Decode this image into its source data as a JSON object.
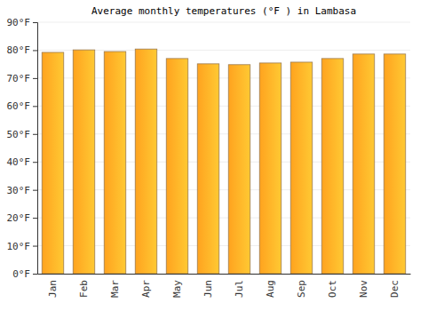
{
  "chart_data": {
    "type": "bar",
    "title": "Average monthly temperatures (°F ) in Lambasa",
    "categories": [
      "Jan",
      "Feb",
      "Mar",
      "Apr",
      "May",
      "Jun",
      "Jul",
      "Aug",
      "Sep",
      "Oct",
      "Nov",
      "Dec"
    ],
    "values": [
      79.2,
      80.1,
      79.5,
      80.4,
      77.0,
      75.1,
      74.8,
      75.4,
      75.7,
      77.0,
      78.6,
      78.6
    ],
    "color": "#ffaa33",
    "ylim": [
      0,
      90
    ],
    "yticks": [
      {
        "value": 0,
        "label": "0°F"
      },
      {
        "value": 10,
        "label": "10°F"
      },
      {
        "value": 20,
        "label": "20°F"
      },
      {
        "value": 30,
        "label": "30°F"
      },
      {
        "value": 40,
        "label": "40°F"
      },
      {
        "value": 50,
        "label": "50°F"
      },
      {
        "value": 60,
        "label": "60°F"
      },
      {
        "value": 70,
        "label": "70°F"
      },
      {
        "value": 80,
        "label": "80°F"
      },
      {
        "value": 90,
        "label": "90°F"
      }
    ],
    "grid": true
  }
}
